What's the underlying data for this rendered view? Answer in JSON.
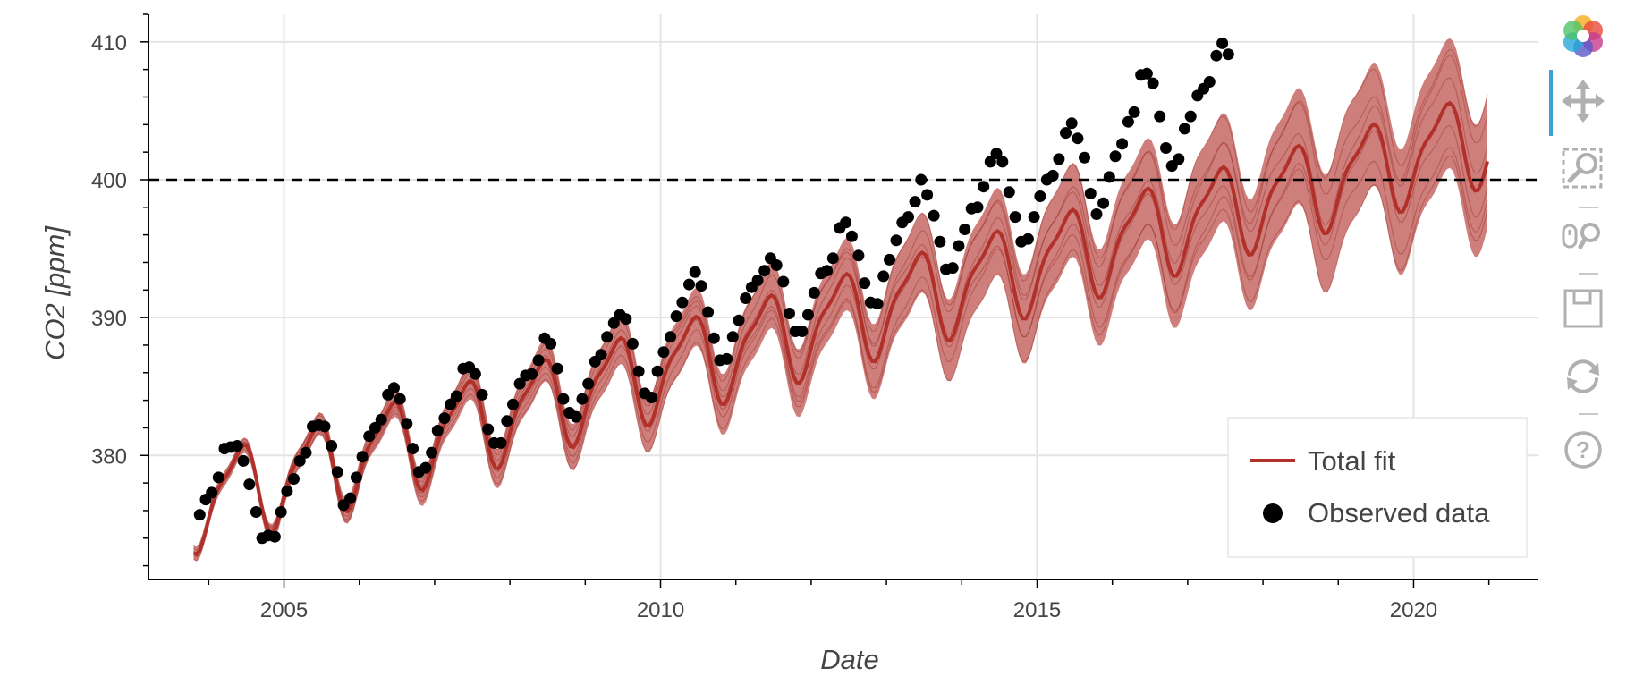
{
  "chart_data": {
    "type": "line",
    "title": "",
    "xlabel": "Date",
    "ylabel": "CO2 [ppm]",
    "xlim": [
      2003.2,
      2021.8
    ],
    "ylim": [
      371,
      412
    ],
    "x_ticks": [
      2005,
      2010,
      2015,
      2020
    ],
    "y_ticks": [
      380,
      390,
      400,
      410
    ],
    "x_tick_labels": [
      "2005",
      "2010",
      "2015",
      "2020"
    ],
    "y_tick_labels": [
      "380",
      "390",
      "400",
      "410"
    ],
    "grid": true,
    "threshold_line": {
      "y": 400,
      "style": "dashed",
      "color": "#000000"
    },
    "legend": {
      "position": "bottom-right",
      "entries": [
        {
          "label": "Total fit",
          "marker": "line",
          "color": "#b2302a"
        },
        {
          "label": "Observed data",
          "marker": "circle",
          "color": "#000000"
        }
      ]
    },
    "series": [
      {
        "name": "Total fit",
        "kind": "line",
        "color": "#b2302a",
        "band_color": "#b2302a",
        "x_start": 2003.8,
        "x_end": 2021.0,
        "step": 0.0417,
        "trend": {
          "base": 376.6,
          "rate": 1.55,
          "curvature": 0.0,
          "origin": 2003.8
        },
        "seasonal": {
          "amp1": 3.1,
          "phase_peak1": 0.38,
          "amp2": 0.95,
          "phase2": 0.55
        },
        "band_halfwidth": {
          "start": 0.5,
          "rate": 0.26,
          "origin": 2004.3
        }
      },
      {
        "name": "Observed data",
        "kind": "scatter",
        "color": "#000000",
        "points": [
          [
            2003.88,
            375.7
          ],
          [
            2003.96,
            376.8
          ],
          [
            2004.04,
            377.3
          ],
          [
            2004.13,
            378.4
          ],
          [
            2004.21,
            380.5
          ],
          [
            2004.29,
            380.6
          ],
          [
            2004.38,
            380.7
          ],
          [
            2004.46,
            379.6
          ],
          [
            2004.54,
            377.9
          ],
          [
            2004.63,
            375.9
          ],
          [
            2004.71,
            374.0
          ],
          [
            2004.79,
            374.2
          ],
          [
            2004.88,
            374.1
          ],
          [
            2004.96,
            375.9
          ],
          [
            2005.04,
            377.4
          ],
          [
            2005.13,
            378.3
          ],
          [
            2005.21,
            379.6
          ],
          [
            2005.29,
            380.2
          ],
          [
            2005.38,
            382.1
          ],
          [
            2005.46,
            382.2
          ],
          [
            2005.54,
            382.1
          ],
          [
            2005.63,
            380.7
          ],
          [
            2005.71,
            378.8
          ],
          [
            2005.79,
            376.4
          ],
          [
            2005.88,
            376.9
          ],
          [
            2005.96,
            378.4
          ],
          [
            2006.04,
            379.9
          ],
          [
            2006.13,
            381.4
          ],
          [
            2006.21,
            382.0
          ],
          [
            2006.29,
            382.6
          ],
          [
            2006.38,
            384.4
          ],
          [
            2006.46,
            384.9
          ],
          [
            2006.54,
            384.1
          ],
          [
            2006.63,
            382.3
          ],
          [
            2006.71,
            380.5
          ],
          [
            2006.79,
            378.8
          ],
          [
            2006.88,
            379.1
          ],
          [
            2006.96,
            380.2
          ],
          [
            2007.04,
            381.8
          ],
          [
            2007.13,
            382.7
          ],
          [
            2007.21,
            383.7
          ],
          [
            2007.29,
            384.3
          ],
          [
            2007.38,
            386.3
          ],
          [
            2007.46,
            386.4
          ],
          [
            2007.54,
            385.9
          ],
          [
            2007.63,
            384.4
          ],
          [
            2007.71,
            381.9
          ],
          [
            2007.79,
            380.9
          ],
          [
            2007.88,
            380.9
          ],
          [
            2007.96,
            382.5
          ],
          [
            2008.04,
            383.7
          ],
          [
            2008.13,
            385.2
          ],
          [
            2008.21,
            385.8
          ],
          [
            2008.29,
            385.9
          ],
          [
            2008.38,
            386.9
          ],
          [
            2008.46,
            388.5
          ],
          [
            2008.54,
            388.1
          ],
          [
            2008.63,
            386.3
          ],
          [
            2008.71,
            384.1
          ],
          [
            2008.79,
            383.1
          ],
          [
            2008.88,
            382.8
          ],
          [
            2008.96,
            384.1
          ],
          [
            2009.04,
            385.2
          ],
          [
            2009.13,
            386.8
          ],
          [
            2009.21,
            387.3
          ],
          [
            2009.29,
            388.6
          ],
          [
            2009.38,
            389.6
          ],
          [
            2009.46,
            390.2
          ],
          [
            2009.54,
            389.9
          ],
          [
            2009.63,
            388.1
          ],
          [
            2009.71,
            386.1
          ],
          [
            2009.79,
            384.5
          ],
          [
            2009.88,
            384.2
          ],
          [
            2009.96,
            386.1
          ],
          [
            2010.04,
            387.5
          ],
          [
            2010.13,
            388.6
          ],
          [
            2010.21,
            390.1
          ],
          [
            2010.29,
            391.1
          ],
          [
            2010.38,
            392.4
          ],
          [
            2010.46,
            393.3
          ],
          [
            2010.54,
            392.3
          ],
          [
            2010.63,
            390.4
          ],
          [
            2010.71,
            388.5
          ],
          [
            2010.79,
            386.9
          ],
          [
            2010.88,
            387.0
          ],
          [
            2010.96,
            388.6
          ],
          [
            2011.04,
            389.8
          ],
          [
            2011.13,
            391.4
          ],
          [
            2011.21,
            392.2
          ],
          [
            2011.29,
            392.7
          ],
          [
            2011.38,
            393.4
          ],
          [
            2011.46,
            394.3
          ],
          [
            2011.54,
            393.8
          ],
          [
            2011.63,
            392.6
          ],
          [
            2011.71,
            390.3
          ],
          [
            2011.79,
            389.0
          ],
          [
            2011.88,
            389.0
          ],
          [
            2011.96,
            390.2
          ],
          [
            2012.04,
            391.8
          ],
          [
            2012.13,
            393.2
          ],
          [
            2012.21,
            393.4
          ],
          [
            2012.29,
            394.3
          ],
          [
            2012.38,
            396.5
          ],
          [
            2012.46,
            396.9
          ],
          [
            2012.54,
            395.9
          ],
          [
            2012.63,
            394.5
          ],
          [
            2012.71,
            392.5
          ],
          [
            2012.79,
            391.1
          ],
          [
            2012.88,
            391.0
          ],
          [
            2012.96,
            393.0
          ],
          [
            2013.04,
            394.2
          ],
          [
            2013.13,
            395.6
          ],
          [
            2013.21,
            396.9
          ],
          [
            2013.29,
            397.3
          ],
          [
            2013.38,
            398.4
          ],
          [
            2013.46,
            400.0
          ],
          [
            2013.54,
            398.9
          ],
          [
            2013.63,
            397.4
          ],
          [
            2013.71,
            395.5
          ],
          [
            2013.79,
            393.5
          ],
          [
            2013.88,
            393.6
          ],
          [
            2013.96,
            395.2
          ],
          [
            2014.04,
            396.4
          ],
          [
            2014.13,
            397.9
          ],
          [
            2014.21,
            398.0
          ],
          [
            2014.29,
            399.5
          ],
          [
            2014.38,
            401.3
          ],
          [
            2014.46,
            401.9
          ],
          [
            2014.54,
            401.3
          ],
          [
            2014.63,
            399.1
          ],
          [
            2014.71,
            397.3
          ],
          [
            2014.79,
            395.5
          ],
          [
            2014.88,
            395.7
          ],
          [
            2014.96,
            397.3
          ],
          [
            2015.04,
            398.8
          ],
          [
            2015.13,
            400.0
          ],
          [
            2015.21,
            400.3
          ],
          [
            2015.29,
            401.5
          ],
          [
            2015.38,
            403.4
          ],
          [
            2015.46,
            404.1
          ],
          [
            2015.54,
            403.0
          ],
          [
            2015.63,
            401.6
          ],
          [
            2015.71,
            399.0
          ],
          [
            2015.79,
            397.5
          ],
          [
            2015.88,
            398.3
          ],
          [
            2015.96,
            400.2
          ],
          [
            2016.04,
            401.7
          ],
          [
            2016.13,
            402.6
          ],
          [
            2016.21,
            404.2
          ],
          [
            2016.29,
            404.9
          ],
          [
            2016.38,
            407.6
          ],
          [
            2016.46,
            407.7
          ],
          [
            2016.54,
            407.0
          ],
          [
            2016.63,
            404.6
          ],
          [
            2016.71,
            402.3
          ],
          [
            2016.79,
            401.0
          ],
          [
            2016.88,
            401.5
          ],
          [
            2016.96,
            403.7
          ],
          [
            2017.04,
            404.6
          ],
          [
            2017.13,
            406.1
          ],
          [
            2017.21,
            406.6
          ],
          [
            2017.29,
            407.1
          ],
          [
            2017.38,
            409.0
          ],
          [
            2017.46,
            409.9
          ],
          [
            2017.54,
            409.1
          ]
        ]
      }
    ]
  },
  "toolbar": {
    "tools": [
      {
        "name": "bokeh-logo",
        "icon": "bokeh-logo-icon"
      },
      {
        "name": "pan",
        "icon": "pan-icon"
      },
      {
        "name": "box-zoom",
        "icon": "box-zoom-icon"
      },
      {
        "name": "wheel-zoom",
        "icon": "wheel-zoom-icon"
      },
      {
        "name": "save",
        "icon": "save-icon"
      },
      {
        "name": "reset",
        "icon": "reset-icon"
      },
      {
        "name": "help",
        "icon": "help-icon"
      }
    ]
  }
}
